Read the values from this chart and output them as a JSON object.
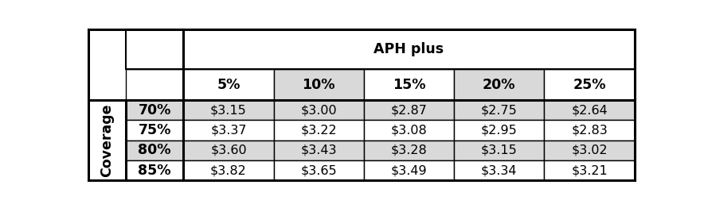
{
  "aph_plus_cols": [
    "5%",
    "10%",
    "15%",
    "20%",
    "25%"
  ],
  "coverage_rows": [
    "70%",
    "75%",
    "80%",
    "85%"
  ],
  "values": [
    [
      "$3.15",
      "$3.00",
      "$2.87",
      "$2.75",
      "$2.64"
    ],
    [
      "$3.37",
      "$3.22",
      "$3.08",
      "$2.95",
      "$2.83"
    ],
    [
      "$3.60",
      "$3.43",
      "$3.28",
      "$3.15",
      "$3.02"
    ],
    [
      "$3.82",
      "$3.65",
      "$3.49",
      "$3.34",
      "$3.21"
    ]
  ],
  "header_label": "APH plus",
  "row_header_label": "Coverage",
  "bg_color": "#ffffff",
  "cell_bg_white": "#ffffff",
  "cell_bg_gray": "#d9d9d9",
  "border_color": "#000000",
  "text_color": "#000000",
  "font_size": 11.5,
  "header_font_size": 12.5,
  "subhdr_col_colors": [
    "#ffffff",
    "#d9d9d9",
    "#ffffff",
    "#d9d9d9",
    "#ffffff"
  ],
  "data_row_colors": [
    "#d9d9d9",
    "#ffffff",
    "#d9d9d9",
    "#ffffff"
  ],
  "data_col_colors": [
    "#ffffff",
    "#d9d9d9",
    "#ffffff",
    "#d9d9d9",
    "#ffffff"
  ]
}
